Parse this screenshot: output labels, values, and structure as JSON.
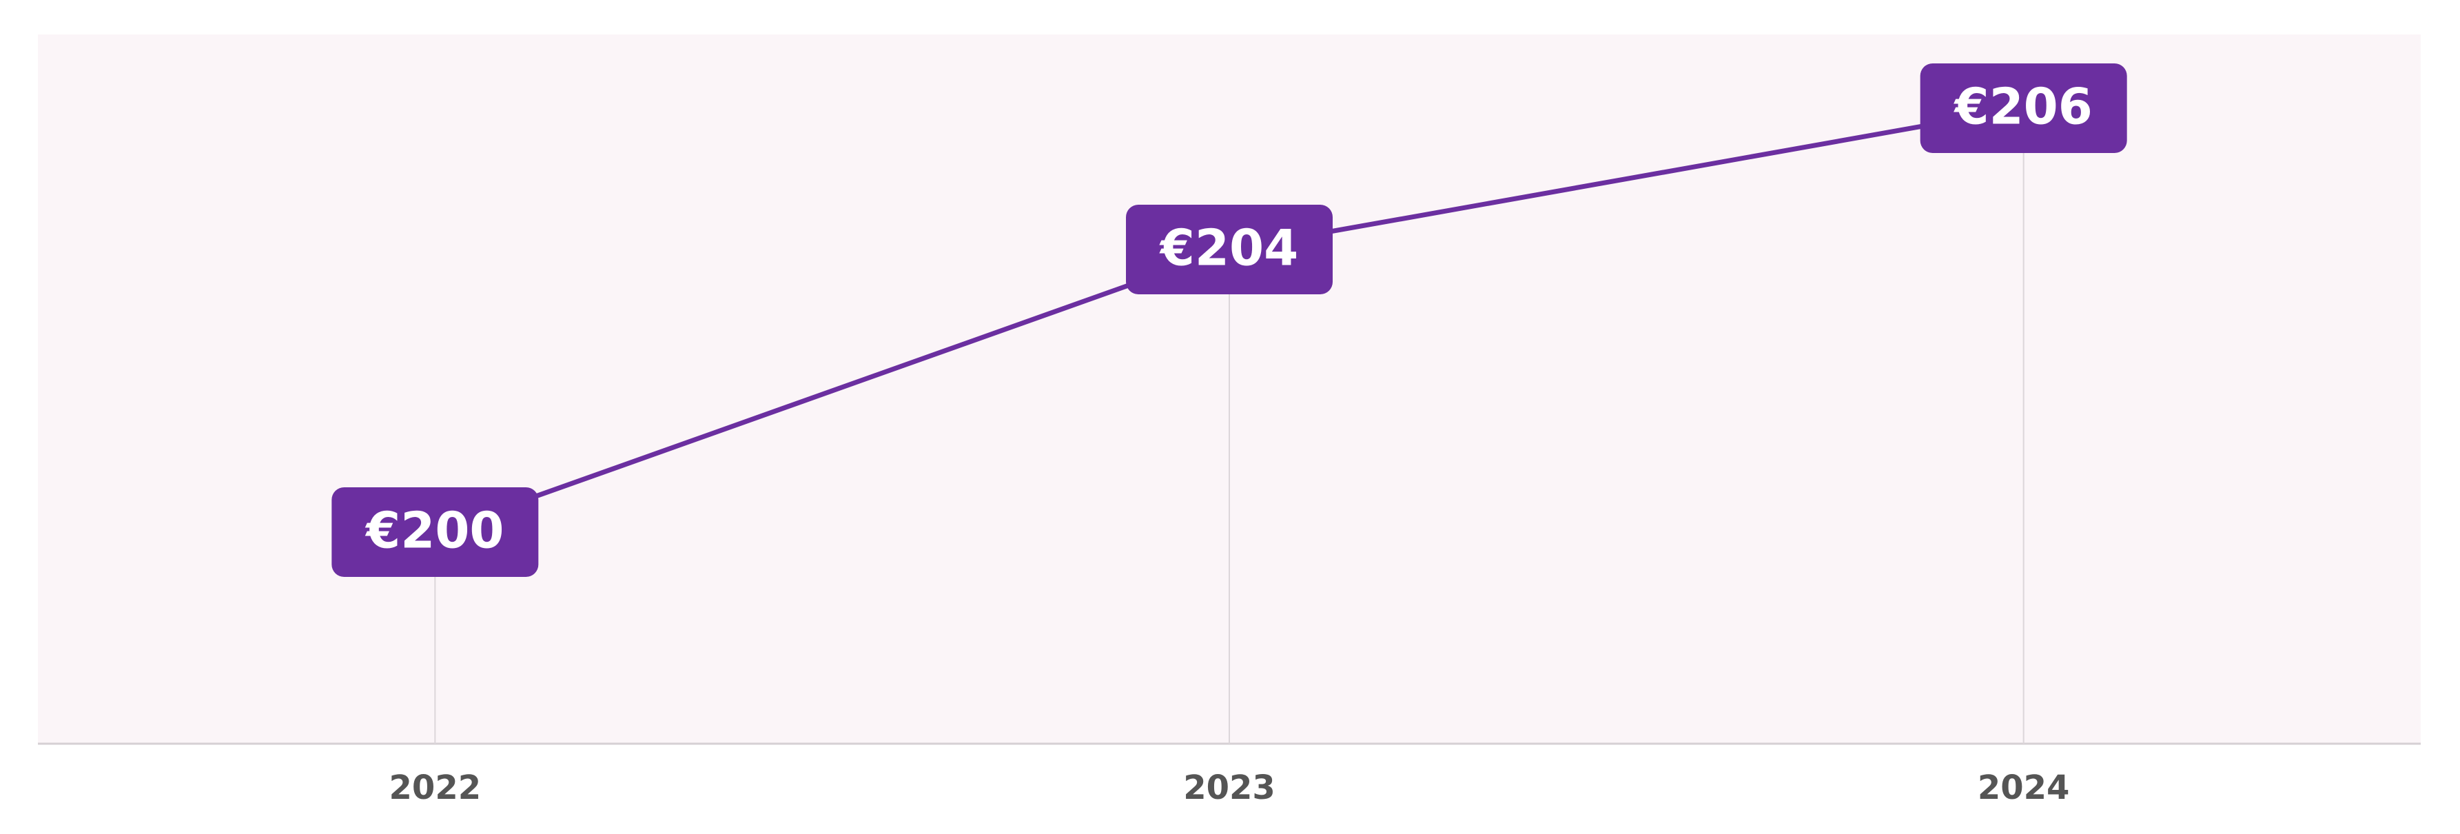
{
  "chart_data": {
    "type": "line",
    "categories": [
      "2022",
      "2023",
      "2024"
    ],
    "series": [
      {
        "color": "#6b2fa0",
        "values": [
          200,
          204,
          206
        ],
        "value_labels": [
          "€200",
          "€204",
          "€206"
        ]
      }
    ],
    "grid": true
  }
}
